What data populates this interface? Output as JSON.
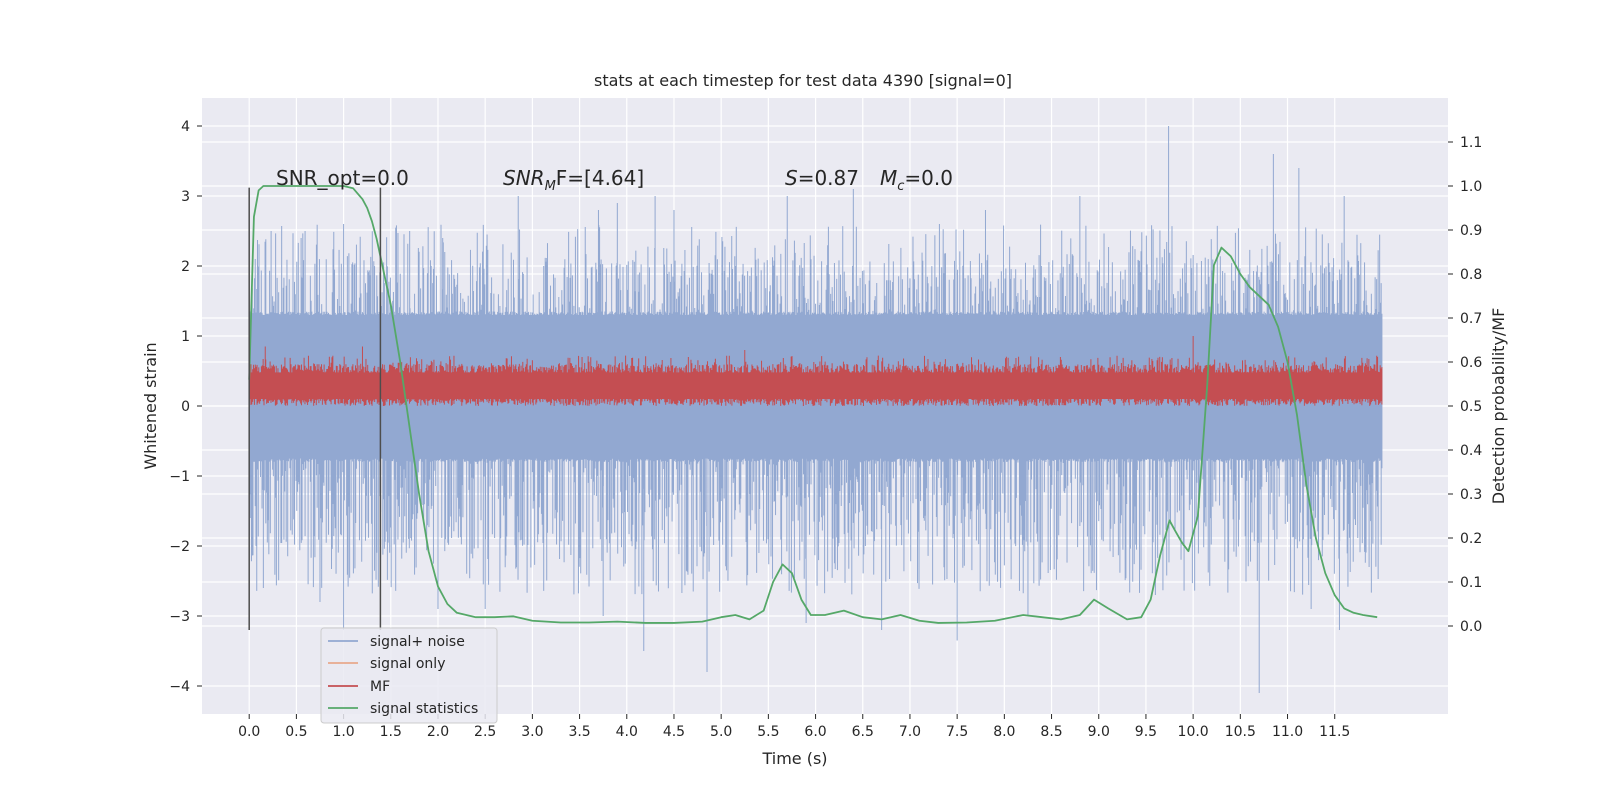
{
  "chart_data": {
    "type": "line",
    "title": "stats at each timestep for test data 4390 [signal=0]",
    "xlabel": "Time (s)",
    "ylabel": "Whitened strain",
    "ylabel_right": "Detection probability/MF",
    "xlim": [
      -0.5,
      12.7
    ],
    "ylim": [
      -4.4,
      4.4
    ],
    "ylim_right": [
      -0.2,
      1.2
    ],
    "x_ticks": [
      0.0,
      0.5,
      1.0,
      1.5,
      2.0,
      2.5,
      3.0,
      3.5,
      4.0,
      4.5,
      5.0,
      5.5,
      6.0,
      6.5,
      7.0,
      7.5,
      8.0,
      8.5,
      9.0,
      9.5,
      10.0,
      10.5,
      11.0,
      11.5
    ],
    "x_tick_labels": [
      "0.0",
      "0.5",
      "1.0",
      "1.5",
      "2.0",
      "2.5",
      "3.0",
      "3.5",
      "4.0",
      "4.5",
      "5.0",
      "5.5",
      "6.0",
      "6.5",
      "7.0",
      "7.5",
      "8.0",
      "8.5",
      "9.0",
      "9.5",
      "10.0",
      "10.5",
      "11.0",
      "11.5"
    ],
    "y_ticks": [
      -4,
      -3,
      -2,
      -1,
      0,
      1,
      2,
      3,
      4
    ],
    "y_tick_labels": [
      "−4",
      "−3",
      "−2",
      "−1",
      "0",
      "1",
      "2",
      "3",
      "4"
    ],
    "y_ticks_right": [
      0.0,
      0.1,
      0.2,
      0.3,
      0.4,
      0.5,
      0.6,
      0.7,
      0.8,
      0.9,
      1.0,
      1.1
    ],
    "y_tick_labels_right": [
      "0.0",
      "0.1",
      "0.2",
      "0.3",
      "0.4",
      "0.5",
      "0.6",
      "0.7",
      "0.8",
      "0.9",
      "1.0",
      "1.1"
    ],
    "grid": true,
    "legend_position": "lower-left",
    "annotations": {
      "snr_opt": "SNR_opt=0.0",
      "snr_mf_prefix": "SNR",
      "snr_mf_sub": "M",
      "snr_mf_suffix": "F=[4.64]",
      "s_prefix": "S",
      "s_suffix": "=0.87",
      "mc_prefix": "M",
      "mc_sub": "c",
      "mc_suffix": "=0.0"
    },
    "vlines": [
      0.0,
      1.39
    ],
    "vline_range": [
      -3.2,
      3.12
    ],
    "series": [
      {
        "name": "signal+ noise",
        "color": "#92a8d1",
        "axis": "left",
        "x_range": [
          0.0,
          12.0
        ],
        "core_envelope": [
          -0.75,
          1.3
        ],
        "peaks_positive": [
          [
            0.55,
            2.4
          ],
          [
            1.0,
            2.6
          ],
          [
            1.7,
            2.5
          ],
          [
            2.05,
            2.4
          ],
          [
            2.85,
            3.0
          ],
          [
            3.7,
            2.8
          ],
          [
            3.9,
            2.9
          ],
          [
            4.3,
            3.0
          ],
          [
            4.5,
            2.8
          ],
          [
            5.7,
            3.0
          ],
          [
            6.4,
            3.1
          ],
          [
            7.8,
            2.8
          ],
          [
            8.8,
            3.0
          ],
          [
            9.74,
            4.0
          ],
          [
            10.85,
            3.6
          ],
          [
            11.12,
            3.4
          ],
          [
            11.6,
            3.0
          ]
        ],
        "peaks_negative": [
          [
            0.15,
            -2.6
          ],
          [
            0.75,
            -2.8
          ],
          [
            1.0,
            -3.2
          ],
          [
            2.0,
            -2.9
          ],
          [
            2.5,
            -2.9
          ],
          [
            3.75,
            -3.0
          ],
          [
            4.18,
            -3.5
          ],
          [
            4.85,
            -3.8
          ],
          [
            5.9,
            -3.1
          ],
          [
            6.7,
            -3.2
          ],
          [
            7.5,
            -3.35
          ],
          [
            8.25,
            -3.0
          ],
          [
            9.6,
            -2.7
          ],
          [
            10.7,
            -4.1
          ],
          [
            11.25,
            -2.9
          ],
          [
            11.55,
            -3.2
          ]
        ]
      },
      {
        "name": "signal only",
        "color": "#e8a98c",
        "axis": "left"
      },
      {
        "name": "MF",
        "color": "#c44e52",
        "axis": "left",
        "x_range": [
          0.0,
          12.0
        ],
        "envelope": [
          0.0,
          0.6
        ],
        "spikes": [
          [
            0.17,
            0.85
          ],
          [
            1.2,
            0.85
          ],
          [
            5.25,
            0.8
          ],
          [
            10.0,
            1.0
          ],
          [
            11.95,
            0.6
          ]
        ]
      },
      {
        "name": "signal statistics",
        "color": "#55a868",
        "axis": "right",
        "x": [
          0.0,
          0.05,
          0.1,
          0.15,
          0.2,
          0.3,
          0.5,
          0.8,
          1.0,
          1.1,
          1.2,
          1.25,
          1.3,
          1.35,
          1.4,
          1.5,
          1.6,
          1.7,
          1.8,
          1.9,
          2.0,
          2.1,
          2.2,
          2.4,
          2.6,
          2.8,
          3.0,
          3.3,
          3.6,
          3.9,
          4.2,
          4.5,
          4.8,
          5.0,
          5.15,
          5.3,
          5.45,
          5.55,
          5.65,
          5.75,
          5.85,
          5.95,
          6.1,
          6.3,
          6.5,
          6.7,
          6.9,
          7.1,
          7.3,
          7.6,
          7.9,
          8.2,
          8.4,
          8.6,
          8.8,
          8.95,
          9.1,
          9.3,
          9.45,
          9.55,
          9.65,
          9.75,
          9.8,
          9.88,
          9.95,
          10.05,
          10.15,
          10.22,
          10.3,
          10.4,
          10.5,
          10.6,
          10.8,
          10.9,
          11.0,
          11.1,
          11.2,
          11.3,
          11.4,
          11.5,
          11.6,
          11.7,
          11.8,
          11.95
        ],
        "y": [
          0.56,
          0.93,
          0.99,
          1.0,
          1.0,
          1.0,
          1.0,
          1.0,
          1.0,
          0.995,
          0.97,
          0.95,
          0.92,
          0.88,
          0.83,
          0.73,
          0.6,
          0.45,
          0.3,
          0.17,
          0.09,
          0.05,
          0.03,
          0.02,
          0.02,
          0.022,
          0.012,
          0.008,
          0.008,
          0.01,
          0.007,
          0.007,
          0.01,
          0.02,
          0.025,
          0.015,
          0.035,
          0.1,
          0.14,
          0.12,
          0.06,
          0.025,
          0.025,
          0.035,
          0.02,
          0.015,
          0.025,
          0.012,
          0.007,
          0.008,
          0.012,
          0.025,
          0.02,
          0.015,
          0.025,
          0.06,
          0.04,
          0.015,
          0.02,
          0.06,
          0.16,
          0.24,
          0.22,
          0.19,
          0.17,
          0.25,
          0.55,
          0.82,
          0.86,
          0.84,
          0.8,
          0.77,
          0.73,
          0.68,
          0.6,
          0.48,
          0.32,
          0.2,
          0.12,
          0.07,
          0.04,
          0.03,
          0.025,
          0.02
        ]
      }
    ]
  }
}
